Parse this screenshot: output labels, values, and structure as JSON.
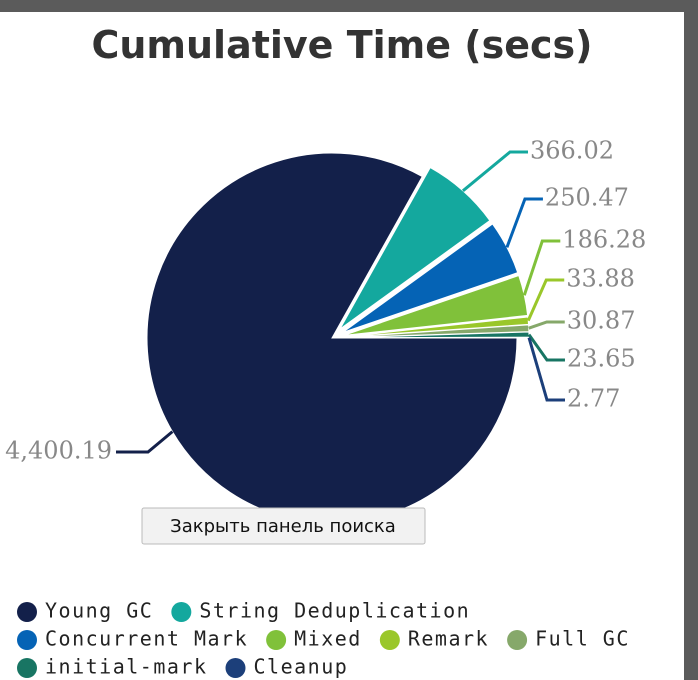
{
  "chart_data": {
    "type": "pie",
    "title": "Cumulative Time (secs)",
    "series": [
      {
        "name": "Young GC",
        "color": "#13204a",
        "values": [
          4400.19
        ],
        "value_labels": [
          "4,400.19"
        ]
      },
      {
        "name": "String Deduplication",
        "color": "#14a89e",
        "values": [
          366.02
        ],
        "value_labels": [
          "366.02"
        ]
      },
      {
        "name": "Concurrent Mark",
        "color": "#0563b5",
        "values": [
          250.47
        ],
        "value_labels": [
          "250.47"
        ]
      },
      {
        "name": "Mixed",
        "color": "#80c13a",
        "values": [
          186.28
        ],
        "value_labels": [
          "186.28"
        ]
      },
      {
        "name": "Remark",
        "color": "#9ac72a",
        "values": [
          33.88
        ],
        "value_labels": [
          "33.88"
        ]
      },
      {
        "name": "Full GC",
        "color": "#86a86a",
        "values": [
          30.87
        ],
        "value_labels": [
          "30.87"
        ]
      },
      {
        "name": "initial-mark",
        "color": "#187563",
        "values": [
          23.65
        ],
        "value_labels": [
          "23.65"
        ]
      },
      {
        "name": "Cleanup",
        "color": "#1c3f7a",
        "values": [
          2.77
        ],
        "value_labels": [
          "2.77"
        ]
      }
    ]
  },
  "tooltip": "Закрыть панель поиска"
}
